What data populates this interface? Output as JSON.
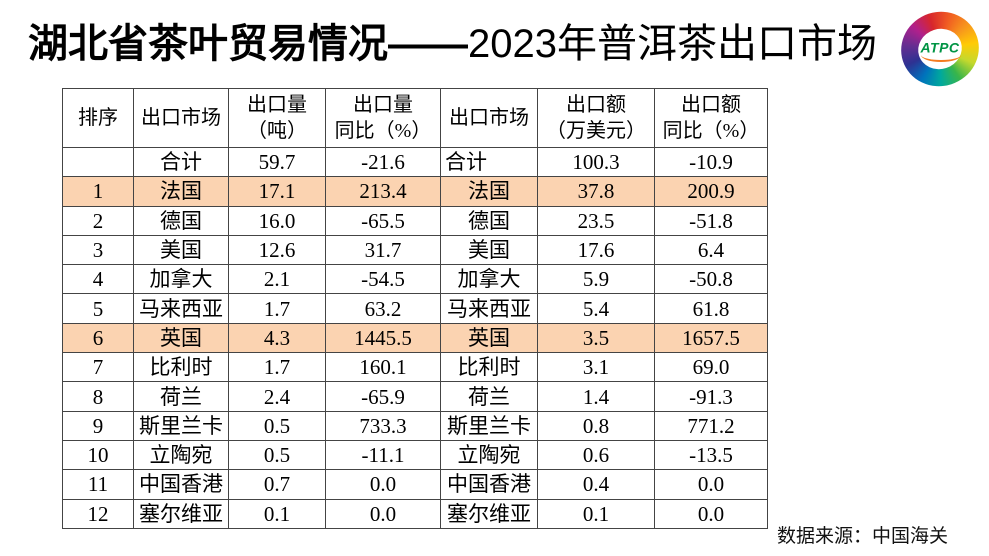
{
  "title": {
    "part1": "湖北省茶叶贸易情况——",
    "part2": "2023年普洱茶出口市场"
  },
  "logo": {
    "label": "ATPC"
  },
  "colors": {
    "highlight_row": "#FBD3B1",
    "table_border": "#444444",
    "logo_green": "#009444",
    "logo_orange": "#F47B20"
  },
  "table": {
    "headers": [
      {
        "line1": "排序",
        "line2": ""
      },
      {
        "line1": "出口市场",
        "line2": ""
      },
      {
        "line1": "出口量",
        "line2": "（吨）"
      },
      {
        "line1": "出口量",
        "line2": "同比（%）"
      },
      {
        "line1": "出口市场",
        "line2": ""
      },
      {
        "line1": "出口额",
        "line2": "（万美元）"
      },
      {
        "line1": "出口额",
        "line2": "同比（%）"
      }
    ],
    "rows": [
      {
        "rank": "",
        "market1": "合计",
        "volume": "59.7",
        "volume_yoy": "-21.6",
        "market2": "合计",
        "value": "100.3",
        "value_yoy": "-10.9",
        "highlight": false,
        "total": true
      },
      {
        "rank": "1",
        "market1": "法国",
        "volume": "17.1",
        "volume_yoy": "213.4",
        "market2": "法国",
        "value": "37.8",
        "value_yoy": "200.9",
        "highlight": true,
        "total": false
      },
      {
        "rank": "2",
        "market1": "德国",
        "volume": "16.0",
        "volume_yoy": "-65.5",
        "market2": "德国",
        "value": "23.5",
        "value_yoy": "-51.8",
        "highlight": false,
        "total": false
      },
      {
        "rank": "3",
        "market1": "美国",
        "volume": "12.6",
        "volume_yoy": "31.7",
        "market2": "美国",
        "value": "17.6",
        "value_yoy": "6.4",
        "highlight": false,
        "total": false
      },
      {
        "rank": "4",
        "market1": "加拿大",
        "volume": "2.1",
        "volume_yoy": "-54.5",
        "market2": "加拿大",
        "value": "5.9",
        "value_yoy": "-50.8",
        "highlight": false,
        "total": false
      },
      {
        "rank": "5",
        "market1": "马来西亚",
        "volume": "1.7",
        "volume_yoy": "63.2",
        "market2": "马来西亚",
        "value": "5.4",
        "value_yoy": "61.8",
        "highlight": false,
        "total": false
      },
      {
        "rank": "6",
        "market1": "英国",
        "volume": "4.3",
        "volume_yoy": "1445.5",
        "market2": "英国",
        "value": "3.5",
        "value_yoy": "1657.5",
        "highlight": true,
        "total": false
      },
      {
        "rank": "7",
        "market1": "比利时",
        "volume": "1.7",
        "volume_yoy": "160.1",
        "market2": "比利时",
        "value": "3.1",
        "value_yoy": "69.0",
        "highlight": false,
        "total": false
      },
      {
        "rank": "8",
        "market1": "荷兰",
        "volume": "2.4",
        "volume_yoy": "-65.9",
        "market2": "荷兰",
        "value": "1.4",
        "value_yoy": "-91.3",
        "highlight": false,
        "total": false
      },
      {
        "rank": "9",
        "market1": "斯里兰卡",
        "volume": "0.5",
        "volume_yoy": "733.3",
        "market2": "斯里兰卡",
        "value": "0.8",
        "value_yoy": "771.2",
        "highlight": false,
        "total": false
      },
      {
        "rank": "10",
        "market1": "立陶宛",
        "volume": "0.5",
        "volume_yoy": "-11.1",
        "market2": "立陶宛",
        "value": "0.6",
        "value_yoy": "-13.5",
        "highlight": false,
        "total": false
      },
      {
        "rank": "11",
        "market1": "中国香港",
        "volume": "0.7",
        "volume_yoy": "0.0",
        "market2": "中国香港",
        "value": "0.4",
        "value_yoy": "0.0",
        "highlight": false,
        "total": false
      },
      {
        "rank": "12",
        "market1": "塞尔维亚",
        "volume": "0.1",
        "volume_yoy": "0.0",
        "market2": "塞尔维亚",
        "value": "0.1",
        "value_yoy": "0.0",
        "highlight": false,
        "total": false
      }
    ]
  },
  "footer": {
    "source": "数据来源：中国海关"
  },
  "chart_data": {
    "type": "table",
    "title": "湖北省茶叶贸易情况——2023年普洱茶出口市场",
    "columns": [
      "排序",
      "出口市场",
      "出口量（吨）",
      "出口量同比（%）",
      "出口市场",
      "出口额（万美元）",
      "出口额同比（%）"
    ],
    "rows": [
      [
        "",
        "合计",
        59.7,
        -21.6,
        "合计",
        100.3,
        -10.9
      ],
      [
        "1",
        "法国",
        17.1,
        213.4,
        "法国",
        37.8,
        200.9
      ],
      [
        "2",
        "德国",
        16.0,
        -65.5,
        "德国",
        23.5,
        -51.8
      ],
      [
        "3",
        "美国",
        12.6,
        31.7,
        "美国",
        17.6,
        6.4
      ],
      [
        "4",
        "加拿大",
        2.1,
        -54.5,
        "加拿大",
        5.9,
        -50.8
      ],
      [
        "5",
        "马来西亚",
        1.7,
        63.2,
        "马来西亚",
        5.4,
        61.8
      ],
      [
        "6",
        "英国",
        4.3,
        1445.5,
        "英国",
        3.5,
        1657.5
      ],
      [
        "7",
        "比利时",
        1.7,
        160.1,
        "比利时",
        3.1,
        69.0
      ],
      [
        "8",
        "荷兰",
        2.4,
        -65.9,
        "荷兰",
        1.4,
        -91.3
      ],
      [
        "9",
        "斯里兰卡",
        0.5,
        733.3,
        "斯里兰卡",
        0.8,
        771.2
      ],
      [
        "10",
        "立陶宛",
        0.5,
        -11.1,
        "立陶宛",
        0.6,
        -13.5
      ],
      [
        "11",
        "中国香港",
        0.7,
        0.0,
        "中国香港",
        0.4,
        0.0
      ],
      [
        "12",
        "塞尔维亚",
        0.1,
        0.0,
        "塞尔维亚",
        0.1,
        0.0
      ]
    ],
    "highlighted_rows": [
      "法国",
      "英国"
    ],
    "source": "数据来源：中国海关"
  }
}
